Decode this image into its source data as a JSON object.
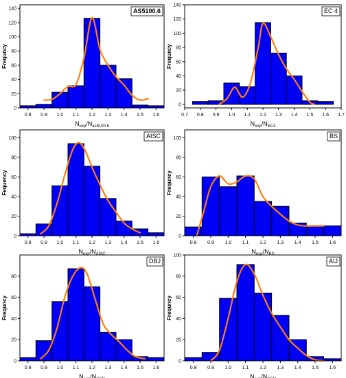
{
  "chart_data": [
    {
      "type": "bar",
      "panel_label": "AS5100.6",
      "ylabel": "Frequncy",
      "xlabel": {
        "main": "N",
        "sub1": "exp",
        "mid": "/N",
        "sub2": "as5100.6"
      },
      "x_ticks": [
        "0.8",
        "0.9",
        "1.0",
        "1.1",
        "1.2",
        "1.3",
        "1.4",
        "1.5",
        "1.6"
      ],
      "x_tick_values": [
        0.8,
        0.9,
        1.0,
        1.1,
        1.2,
        1.3,
        1.4,
        1.5,
        1.6
      ],
      "xlim": [
        0.75,
        1.65
      ],
      "y_ticks": [
        "0",
        "20",
        "40",
        "60",
        "80",
        "100",
        "120",
        "140"
      ],
      "ylim": [
        0,
        145
      ],
      "bins": [
        {
          "x": 0.8,
          "value": 3
        },
        {
          "x": 0.9,
          "value": 5
        },
        {
          "x": 1.0,
          "value": 22
        },
        {
          "x": 1.1,
          "value": 31
        },
        {
          "x": 1.2,
          "value": 126
        },
        {
          "x": 1.3,
          "value": 60
        },
        {
          "x": 1.4,
          "value": 41
        },
        {
          "x": 1.5,
          "value": 4
        },
        {
          "x": 1.6,
          "value": 3
        }
      ],
      "curve": [
        [
          0.9,
          11
        ],
        [
          0.95,
          12
        ],
        [
          1.0,
          20
        ],
        [
          1.05,
          30
        ],
        [
          1.1,
          33
        ],
        [
          1.15,
          70
        ],
        [
          1.2,
          127
        ],
        [
          1.25,
          82
        ],
        [
          1.3,
          60
        ],
        [
          1.35,
          44
        ],
        [
          1.4,
          32
        ],
        [
          1.45,
          18
        ],
        [
          1.5,
          11
        ],
        [
          1.55,
          13
        ]
      ]
    },
    {
      "type": "bar",
      "panel_label": "EC 4",
      "ylabel": "Frequncy",
      "xlabel": {
        "main": "N",
        "sub1": "exp",
        "mid": "/N",
        "sub2": "EC4"
      },
      "x_ticks": [
        "0.7",
        "0.8",
        "0.9",
        "1.0",
        "1.1",
        "1.2",
        "1.3",
        "1.4",
        "1.5",
        "1.6",
        "1.7"
      ],
      "x_tick_values": [
        0.7,
        0.8,
        0.9,
        1.0,
        1.1,
        1.2,
        1.3,
        1.4,
        1.5,
        1.6,
        1.7
      ],
      "xlim": [
        0.7,
        1.7
      ],
      "y_ticks": [
        "0",
        "20",
        "40",
        "60",
        "80",
        "100",
        "120",
        "140"
      ],
      "ylim": [
        -5,
        140
      ],
      "bins": [
        {
          "x": 0.8,
          "value": 4
        },
        {
          "x": 0.9,
          "value": 5
        },
        {
          "x": 1.0,
          "value": 30
        },
        {
          "x": 1.1,
          "value": 25
        },
        {
          "x": 1.2,
          "value": 115
        },
        {
          "x": 1.3,
          "value": 72
        },
        {
          "x": 1.4,
          "value": 40
        },
        {
          "x": 1.5,
          "value": 5
        },
        {
          "x": 1.6,
          "value": 4
        }
      ],
      "curve": [
        [
          0.92,
          0
        ],
        [
          0.97,
          8
        ],
        [
          1.02,
          24
        ],
        [
          1.07,
          10
        ],
        [
          1.12,
          30
        ],
        [
          1.17,
          80
        ],
        [
          1.2,
          114
        ],
        [
          1.25,
          95
        ],
        [
          1.3,
          70
        ],
        [
          1.35,
          50
        ],
        [
          1.4,
          35
        ],
        [
          1.45,
          18
        ],
        [
          1.5,
          3
        ],
        [
          1.53,
          0
        ]
      ]
    },
    {
      "type": "bar",
      "panel_label": "AISC",
      "ylabel": "Fequency",
      "xlabel": {
        "main": "N",
        "sub1": "exp",
        "mid": "/N",
        "sub2": "AISC"
      },
      "x_ticks": [
        "0.8",
        "0.9",
        "1.0",
        "1.1",
        "1.2",
        "1.3",
        "1.4",
        "1.5",
        "1.6"
      ],
      "x_tick_values": [
        0.8,
        0.9,
        1.0,
        1.1,
        1.2,
        1.3,
        1.4,
        1.5,
        1.6
      ],
      "xlim": [
        0.75,
        1.65
      ],
      "y_ticks": [
        "0",
        "20",
        "40",
        "60",
        "80",
        "100"
      ],
      "ylim": [
        0,
        108
      ],
      "bins": [
        {
          "x": 0.8,
          "value": 2
        },
        {
          "x": 0.9,
          "value": 12
        },
        {
          "x": 1.0,
          "value": 51
        },
        {
          "x": 1.1,
          "value": 94
        },
        {
          "x": 1.2,
          "value": 71
        },
        {
          "x": 1.3,
          "value": 38
        },
        {
          "x": 1.4,
          "value": 15
        },
        {
          "x": 1.5,
          "value": 7
        },
        {
          "x": 1.6,
          "value": 3
        }
      ],
      "curve": [
        [
          0.88,
          2
        ],
        [
          0.93,
          10
        ],
        [
          0.98,
          32
        ],
        [
          1.03,
          62
        ],
        [
          1.08,
          88
        ],
        [
          1.12,
          95
        ],
        [
          1.16,
          86
        ],
        [
          1.2,
          70
        ],
        [
          1.25,
          52
        ],
        [
          1.3,
          36
        ],
        [
          1.35,
          24
        ],
        [
          1.4,
          13
        ],
        [
          1.45,
          7
        ],
        [
          1.5,
          3
        ]
      ]
    },
    {
      "type": "bar",
      "panel_label": "BS",
      "ylabel": "Frequncy",
      "xlabel": {
        "main": "N",
        "sub1": "exp",
        "mid": "/N",
        "sub2": "BS"
      },
      "x_ticks": [
        "0.8",
        "0.9",
        "1.0",
        "1.1",
        "1.2",
        "1.3",
        "1.4",
        "1.5",
        "1.6"
      ],
      "x_tick_values": [
        0.8,
        0.9,
        1.0,
        1.1,
        1.2,
        1.3,
        1.4,
        1.5,
        1.6
      ],
      "xlim": [
        0.75,
        1.65
      ],
      "y_ticks": [
        "0",
        "20",
        "40",
        "60",
        "80",
        "100"
      ],
      "ylim": [
        0,
        108
      ],
      "bins": [
        {
          "x": 0.8,
          "value": 9
        },
        {
          "x": 0.9,
          "value": 60
        },
        {
          "x": 1.0,
          "value": 50
        },
        {
          "x": 1.1,
          "value": 61
        },
        {
          "x": 1.2,
          "value": 35
        },
        {
          "x": 1.3,
          "value": 30
        },
        {
          "x": 1.4,
          "value": 13
        },
        {
          "x": 1.5,
          "value": 10
        },
        {
          "x": 1.6,
          "value": 10
        }
      ],
      "curve": [
        [
          0.82,
          0
        ],
        [
          0.86,
          25
        ],
        [
          0.9,
          50
        ],
        [
          0.95,
          61
        ],
        [
          1.0,
          53
        ],
        [
          1.05,
          55
        ],
        [
          1.1,
          61
        ],
        [
          1.15,
          58
        ],
        [
          1.2,
          40
        ],
        [
          1.25,
          30
        ],
        [
          1.3,
          22
        ],
        [
          1.35,
          15
        ],
        [
          1.4,
          11
        ],
        [
          1.45,
          10
        ],
        [
          1.5,
          10
        ],
        [
          1.55,
          10
        ]
      ]
    },
    {
      "type": "bar",
      "panel_label": "DBJ",
      "ylabel": "Frequncy",
      "xlabel": {
        "main": "N",
        "sub1": "exp",
        "mid": "/N",
        "sub2": "GEP"
      },
      "x_ticks": [
        "0.8",
        "0.9",
        "1.0",
        "1.1",
        "1.2",
        "1.3",
        "1.4",
        "1.5",
        "1.6"
      ],
      "x_tick_values": [
        0.8,
        0.9,
        1.0,
        1.1,
        1.2,
        1.3,
        1.4,
        1.5,
        1.6
      ],
      "xlim": [
        0.75,
        1.65
      ],
      "y_ticks": [
        "0",
        "20",
        "40",
        "60",
        "80"
      ],
      "ylim": [
        0,
        100
      ],
      "bins": [
        {
          "x": 0.8,
          "value": 3
        },
        {
          "x": 0.9,
          "value": 19
        },
        {
          "x": 1.0,
          "value": 56
        },
        {
          "x": 1.1,
          "value": 87
        },
        {
          "x": 1.2,
          "value": 70
        },
        {
          "x": 1.3,
          "value": 27
        },
        {
          "x": 1.4,
          "value": 20
        },
        {
          "x": 1.5,
          "value": 4
        },
        {
          "x": 1.6,
          "value": 3
        }
      ],
      "curve": [
        [
          0.88,
          2
        ],
        [
          0.93,
          10
        ],
        [
          0.98,
          30
        ],
        [
          1.03,
          60
        ],
        [
          1.08,
          80
        ],
        [
          1.13,
          88
        ],
        [
          1.17,
          82
        ],
        [
          1.22,
          58
        ],
        [
          1.27,
          35
        ],
        [
          1.32,
          25
        ],
        [
          1.37,
          18
        ],
        [
          1.42,
          10
        ],
        [
          1.47,
          4
        ],
        [
          1.53,
          2
        ]
      ]
    },
    {
      "type": "bar",
      "panel_label": "AIJ",
      "ylabel": "Frequncy",
      "xlabel": {
        "main": "N",
        "sub1": "exp",
        "mid": "/N",
        "sub2": "GEP"
      },
      "x_ticks": [
        "0.8",
        "0.9",
        "1.0",
        "1.1",
        "1.2",
        "1.3",
        "1.4",
        "1.5",
        "1.6"
      ],
      "x_tick_values": [
        0.8,
        0.9,
        1.0,
        1.1,
        1.2,
        1.3,
        1.4,
        1.5,
        1.6
      ],
      "xlim": [
        0.75,
        1.65
      ],
      "y_ticks": [
        "0",
        "20",
        "40",
        "60",
        "80",
        "100"
      ],
      "ylim": [
        0,
        100
      ],
      "bins": [
        {
          "x": 0.8,
          "value": 3
        },
        {
          "x": 0.9,
          "value": 8
        },
        {
          "x": 1.0,
          "value": 59
        },
        {
          "x": 1.1,
          "value": 91
        },
        {
          "x": 1.2,
          "value": 64
        },
        {
          "x": 1.3,
          "value": 43
        },
        {
          "x": 1.4,
          "value": 20
        },
        {
          "x": 1.5,
          "value": 4
        },
        {
          "x": 1.6,
          "value": 2
        }
      ],
      "curve": [
        [
          0.9,
          0
        ],
        [
          0.95,
          10
        ],
        [
          1.0,
          40
        ],
        [
          1.05,
          75
        ],
        [
          1.1,
          91
        ],
        [
          1.15,
          82
        ],
        [
          1.2,
          62
        ],
        [
          1.25,
          45
        ],
        [
          1.3,
          32
        ],
        [
          1.35,
          20
        ],
        [
          1.4,
          12
        ],
        [
          1.45,
          5
        ],
        [
          1.5,
          1
        ],
        [
          1.55,
          0
        ]
      ]
    }
  ],
  "colors": {
    "bar": "#0000f5",
    "bar_edge": "#000000",
    "curve": "#ff7f0e",
    "axis": "#000000"
  }
}
